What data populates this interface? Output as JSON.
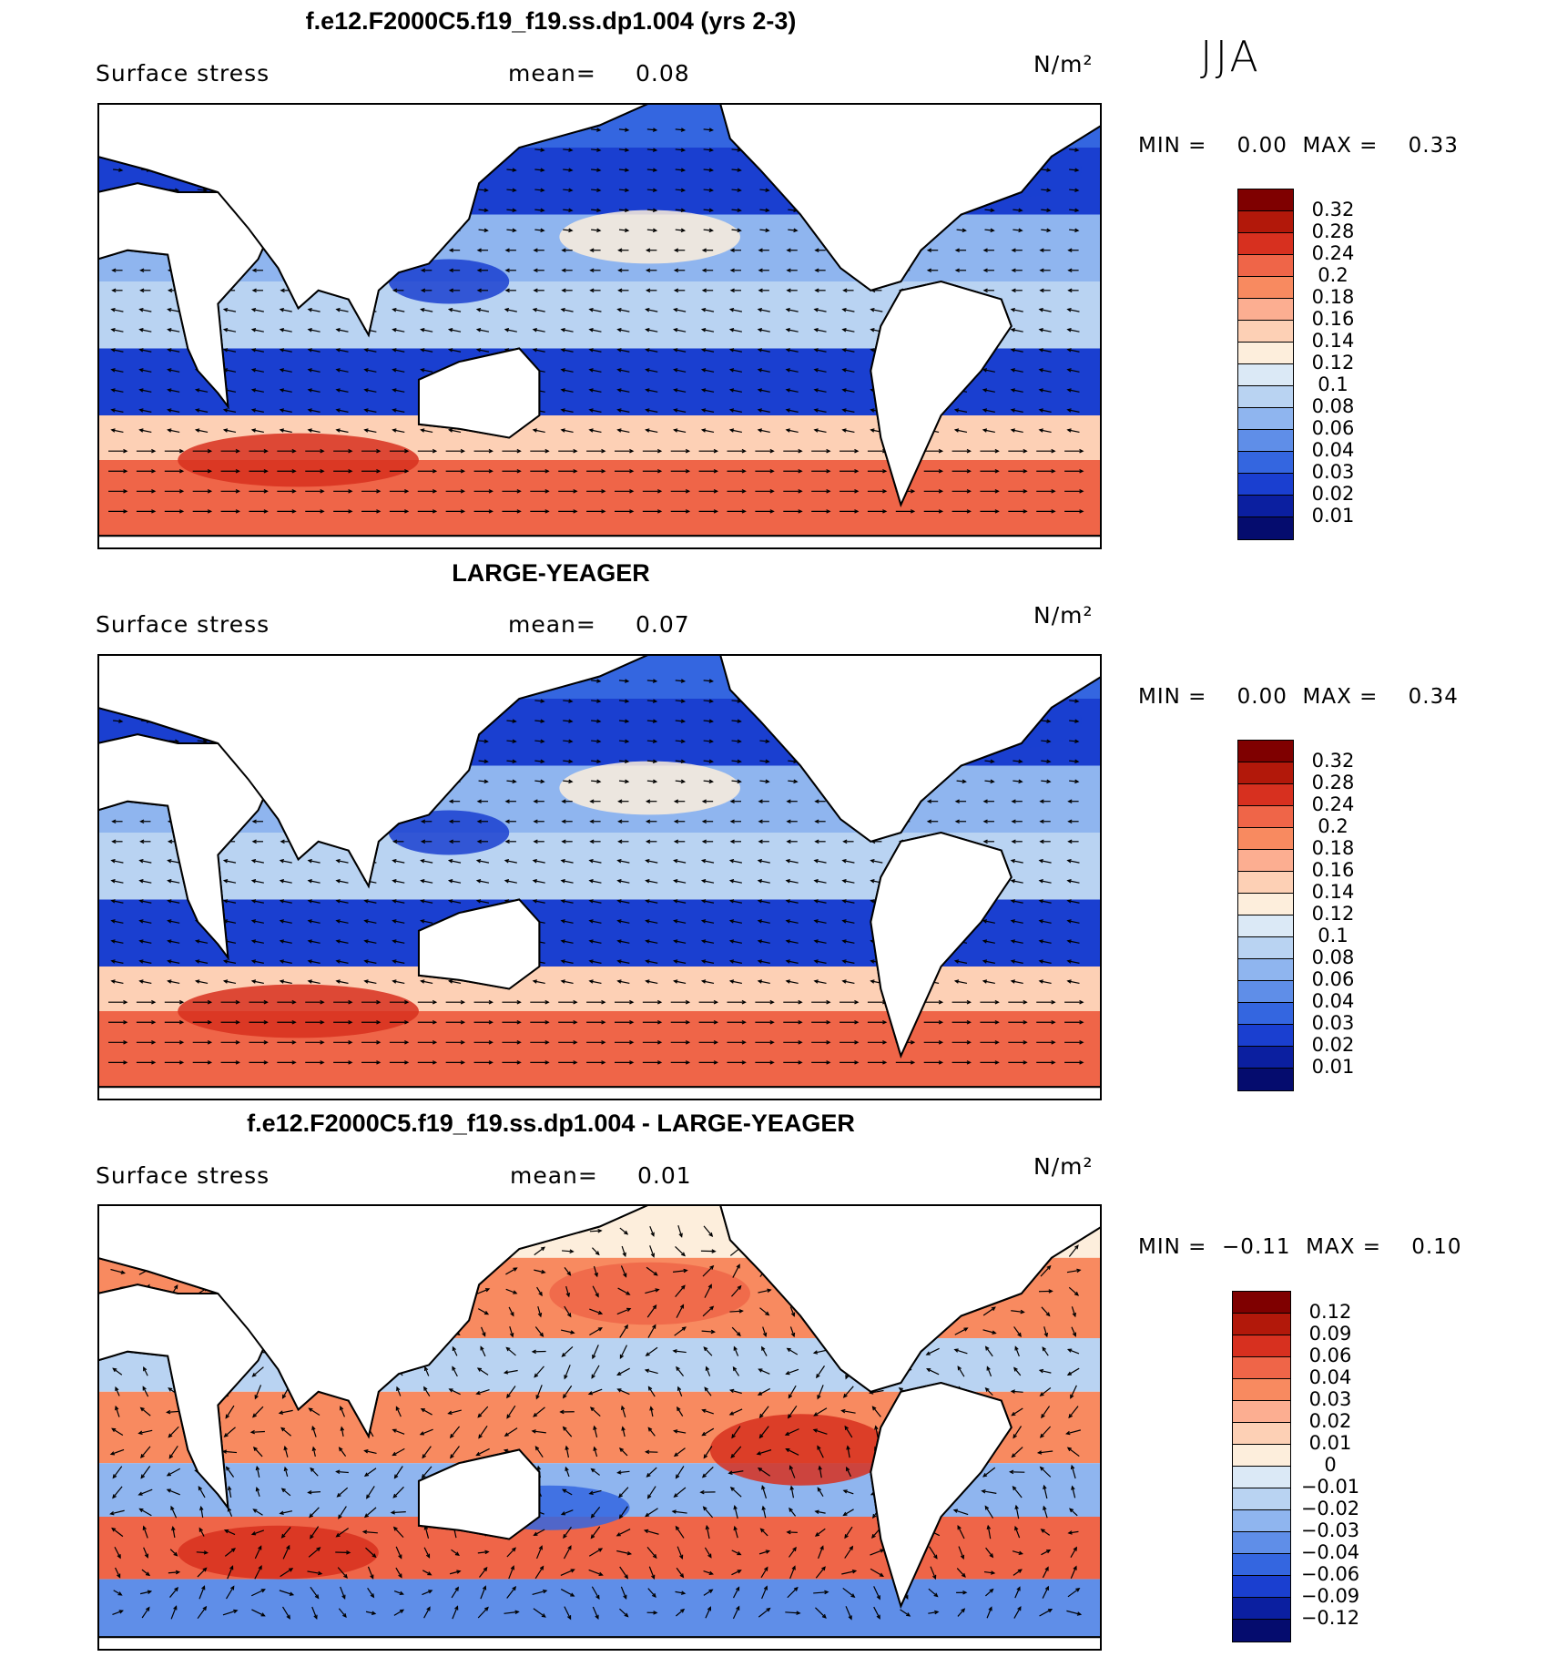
{
  "season": "JJA",
  "panels": [
    {
      "title": "f.e12.F2000C5.f19_f19.ss.dp1.004 (yrs 2-3)",
      "variable": "Surface stress",
      "mean_label": "mean=",
      "mean_value": "0.08",
      "units": "N/m²",
      "minmax": "MIN =    0.00  MAX =    0.33",
      "colorbar_ticks": [
        "0.32",
        "0.28",
        "0.24",
        "0.2",
        "0.18",
        "0.16",
        "0.14",
        "0.12",
        "0.1",
        "0.08",
        "0.06",
        "0.04",
        "0.03",
        "0.02",
        "0.01"
      ]
    },
    {
      "title": "LARGE-YEAGER",
      "variable": "Surface stress",
      "mean_label": "mean=",
      "mean_value": "0.07",
      "units": "N/m²",
      "minmax": "MIN =    0.00  MAX =    0.34",
      "colorbar_ticks": [
        "0.32",
        "0.28",
        "0.24",
        "0.2",
        "0.18",
        "0.16",
        "0.14",
        "0.12",
        "0.1",
        "0.08",
        "0.06",
        "0.04",
        "0.03",
        "0.02",
        "0.01"
      ]
    },
    {
      "title": "f.e12.F2000C5.f19_f19.ss.dp1.004 - LARGE-YEAGER",
      "variable": "Surface stress",
      "mean_label": "mean=",
      "mean_value": "0.01",
      "units": "N/m²",
      "minmax": "MIN =  −0.11  MAX =    0.10",
      "colorbar_ticks": [
        "0.12",
        "0.09",
        "0.06",
        "0.04",
        "0.03",
        "0.02",
        "0.01",
        "0",
        "−0.01",
        "−0.02",
        "−0.03",
        "−0.04",
        "−0.06",
        "−0.09",
        "−0.12"
      ]
    }
  ],
  "colors": {
    "abs_scale": [
      "#7f0000",
      "#b2180a",
      "#d7301f",
      "#ef6548",
      "#f88a60",
      "#fcae91",
      "#fdd0b5",
      "#fdeedc",
      "#dbe9f6",
      "#b9d3f2",
      "#8fb5ef",
      "#5f8ee8",
      "#3466e0",
      "#1a3fd0",
      "#0b1fa0",
      "#050c6e"
    ],
    "diff_scale": [
      "#7f0000",
      "#b2180a",
      "#d7301f",
      "#ef6548",
      "#f88a60",
      "#fcae91",
      "#fdd0b5",
      "#fdeedc",
      "#dbe9f6",
      "#b9d3f2",
      "#8fb5ef",
      "#5f8ee8",
      "#3466e0",
      "#1a3fd0",
      "#0b1fa0",
      "#050c6e"
    ],
    "land": "#ffffff",
    "coast": "#000000"
  }
}
